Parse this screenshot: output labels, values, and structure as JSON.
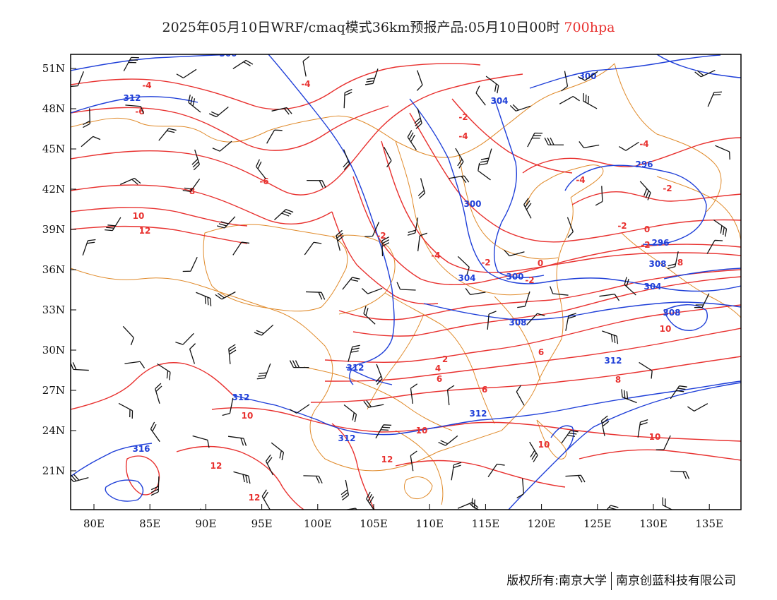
{
  "title": {
    "main": "2025年05月10日WRF/cmaq模式36km预报产品:05月10日00时",
    "level": "700hpa"
  },
  "axes": {
    "x_ticks": [
      "80E",
      "85E",
      "90E",
      "95E",
      "100E",
      "105E",
      "110E",
      "115E",
      "120E",
      "125E",
      "130E",
      "135E"
    ],
    "y_ticks": [
      "51N",
      "48N",
      "45N",
      "42N",
      "39N",
      "36N",
      "33N",
      "30N",
      "27N",
      "24N",
      "21N"
    ]
  },
  "colors": {
    "temperature": "#e8312f",
    "geopotential": "#1f3fd8",
    "border": "#e08a2a",
    "barb": "#111111"
  },
  "temperature_labels": [
    "-4",
    "-4",
    "-6",
    "-6",
    "-2",
    "-4",
    "-4",
    "-4",
    "-2",
    "-4",
    "-2",
    "-2",
    "-2",
    "0",
    "0",
    "-2",
    "-2",
    "8",
    "8",
    "10",
    "12",
    "10",
    "10",
    "6",
    "8",
    "10",
    "10",
    "12",
    "12",
    "12",
    "6",
    "4",
    "2",
    "6",
    "10"
  ],
  "height_labels": [
    "312",
    "304",
    "300",
    "300",
    "296",
    "296",
    "300",
    "304",
    "304",
    "308",
    "308",
    "312",
    "312",
    "312",
    "312",
    "312",
    "316",
    "308",
    "300"
  ],
  "footer": {
    "copyright": "版权所有:南京大学",
    "company": "南京创蓝科技有限公司"
  }
}
